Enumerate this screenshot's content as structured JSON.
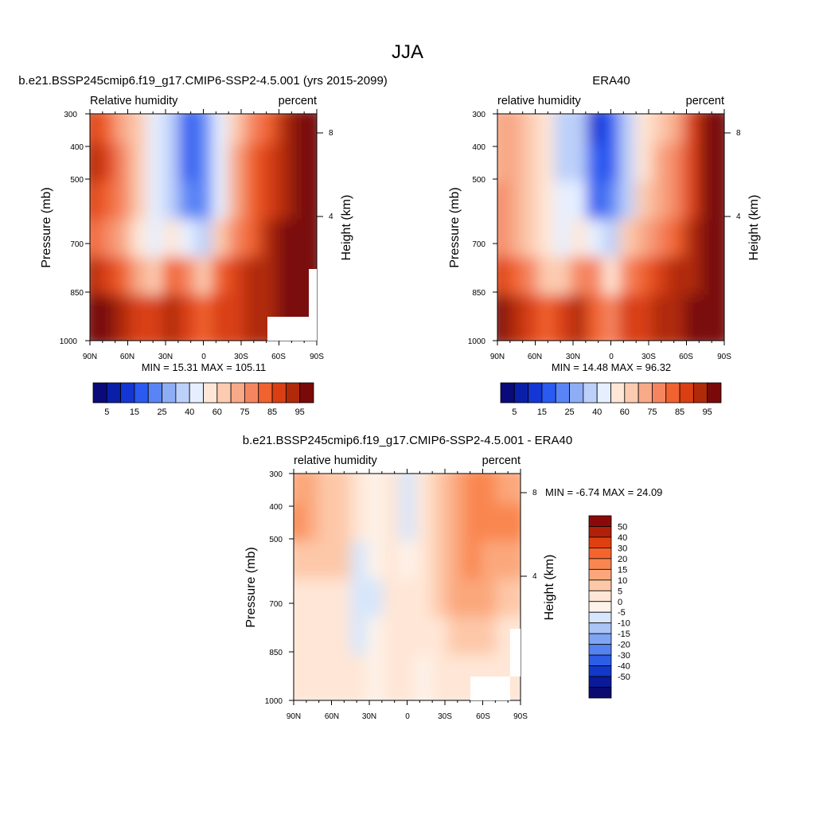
{
  "figure": {
    "title": "JJA"
  },
  "panels": [
    {
      "id": "model",
      "header": "b.e21.BSSP245cmip6.f19_g17.CMIP6-SSP2-4.5.001 (yrs 2015-2099)",
      "left_label": "Relative humidity",
      "right_label": "percent",
      "ylabel": "Pressure (mb)",
      "ylabel_right": "Height (km)",
      "stats": "MIN =  15.31  MAX = 105.11",
      "x_ticks": [
        "90N",
        "60N",
        "30N",
        "0",
        "30S",
        "60S",
        "90S"
      ],
      "y_ticks": [
        "300",
        "400",
        "500",
        "700",
        "850",
        "1000"
      ],
      "height_ticks": [
        "8",
        "4"
      ],
      "colorbar_labels": [
        "5",
        "15",
        "25",
        "40",
        "60",
        "75",
        "85",
        "95"
      ]
    },
    {
      "id": "obs",
      "header": "ERA40",
      "left_label": "relative humidity",
      "right_label": "percent",
      "ylabel": "Pressure (mb)",
      "ylabel_right": "Height (km)",
      "stats": "MIN =  14.48  MAX =  96.32",
      "x_ticks": [
        "90N",
        "60N",
        "30N",
        "0",
        "30S",
        "60S",
        "90S"
      ],
      "y_ticks": [
        "300",
        "400",
        "500",
        "700",
        "850",
        "1000"
      ],
      "height_ticks": [
        "8",
        "4"
      ],
      "colorbar_labels": [
        "5",
        "15",
        "25",
        "40",
        "60",
        "75",
        "85",
        "95"
      ]
    },
    {
      "id": "diff",
      "header": "b.e21.BSSP245cmip6.f19_g17.CMIP6-SSP2-4.5.001 - ERA40",
      "left_label": "relative humidity",
      "right_label": "percent",
      "ylabel": "Pressure (mb)",
      "ylabel_right": "Height (km)",
      "stats": "MIN =  -6.74  MAX =  24.09",
      "x_ticks": [
        "90N",
        "60N",
        "30N",
        "0",
        "30S",
        "60S",
        "90S"
      ],
      "y_ticks": [
        "300",
        "400",
        "500",
        "700",
        "850",
        "1000"
      ],
      "height_ticks": [
        "8",
        "4"
      ],
      "colorbar_labels": [
        "50",
        "40",
        "30",
        "20",
        "15",
        "10",
        "5",
        "0",
        "-5",
        "-10",
        "-15",
        "-20",
        "-30",
        "-40",
        "-50"
      ]
    }
  ],
  "colors": {
    "rh_scale": [
      "#0a0a7a",
      "#0a1fa8",
      "#1436d4",
      "#2a5af0",
      "#5a84f5",
      "#8fadf5",
      "#bcd0fa",
      "#e6efff",
      "#ffe6d6",
      "#fccbb0",
      "#f8a987",
      "#f58561",
      "#f0622f",
      "#d93f12",
      "#b02a0a",
      "#7a0a0a"
    ],
    "diff_scale": [
      "#8a0a0a",
      "#b0200a",
      "#e0400f",
      "#f5642c",
      "#f98650",
      "#fba77b",
      "#fdc8a8",
      "#ffe6d6",
      "#fdf3ea",
      "#d6e6fb",
      "#a9c4f5",
      "#7fa4f3",
      "#5582f0",
      "#2d5de5",
      "#1238c8",
      "#0a1a9a",
      "#0a0a70"
    ]
  },
  "chart_data": [
    {
      "type": "heatmap",
      "title": "b.e21.BSSP245cmip6.f19_g17.CMIP6-SSP2-4.5.001 (yrs 2015-2099)",
      "xlabel": "",
      "ylabel": "Pressure (mb)",
      "x": [
        "90N",
        "60N",
        "30N",
        "0",
        "30S",
        "60S",
        "90S"
      ],
      "y": [
        300,
        400,
        500,
        700,
        850,
        1000
      ],
      "levels": [
        5,
        10,
        15,
        20,
        25,
        30,
        40,
        50,
        60,
        65,
        70,
        75,
        80,
        85,
        90,
        95
      ],
      "min": 15.31,
      "max": 105.11,
      "values": [
        [
          80,
          75,
          65,
          60,
          40,
          30,
          15,
          20,
          40,
          60,
          70,
          75,
          85,
          95
        ],
        [
          85,
          80,
          70,
          60,
          45,
          35,
          15,
          20,
          45,
          65,
          75,
          80,
          85,
          95
        ],
        [
          80,
          78,
          70,
          60,
          45,
          35,
          20,
          22,
          45,
          65,
          75,
          82,
          88,
          95
        ],
        [
          75,
          70,
          65,
          55,
          40,
          55,
          45,
          35,
          60,
          70,
          78,
          85,
          90,
          95
        ],
        [
          85,
          80,
          75,
          65,
          60,
          75,
          70,
          60,
          75,
          80,
          85,
          88,
          90,
          95
        ],
        [
          95,
          90,
          85,
          80,
          80,
          85,
          80,
          75,
          80,
          82,
          85,
          88,
          92,
          95
        ]
      ]
    },
    {
      "type": "heatmap",
      "title": "ERA40",
      "xlabel": "",
      "ylabel": "Pressure (mb)",
      "x": [
        "90N",
        "60N",
        "30N",
        "0",
        "30S",
        "60S",
        "90S"
      ],
      "y": [
        300,
        400,
        500,
        700,
        850,
        1000
      ],
      "levels": [
        5,
        10,
        15,
        20,
        25,
        30,
        40,
        50,
        60,
        65,
        70,
        75,
        80,
        85,
        90,
        95
      ],
      "min": 14.48,
      "max": 96.32,
      "values": [
        [
          65,
          65,
          60,
          50,
          30,
          30,
          10,
          15,
          35,
          55,
          60,
          65,
          80,
          90
        ],
        [
          65,
          65,
          60,
          50,
          35,
          35,
          15,
          15,
          35,
          55,
          65,
          70,
          80,
          90
        ],
        [
          70,
          65,
          60,
          50,
          40,
          40,
          15,
          20,
          35,
          60,
          65,
          70,
          80,
          90
        ],
        [
          70,
          65,
          60,
          50,
          40,
          50,
          40,
          30,
          60,
          65,
          70,
          75,
          85,
          90
        ],
        [
          80,
          75,
          70,
          60,
          60,
          70,
          70,
          55,
          70,
          75,
          80,
          85,
          85,
          90
        ],
        [
          90,
          85,
          80,
          75,
          80,
          85,
          75,
          70,
          80,
          80,
          85,
          85,
          90,
          95
        ]
      ]
    },
    {
      "type": "heatmap",
      "title": "b.e21.BSSP245cmip6.f19_g17.CMIP6-SSP2-4.5.001 - ERA40",
      "xlabel": "",
      "ylabel": "Pressure (mb)",
      "x": [
        "90N",
        "60N",
        "30N",
        "0",
        "30S",
        "60S",
        "90S"
      ],
      "y": [
        300,
        400,
        500,
        700,
        850,
        1000
      ],
      "levels": [
        -50,
        -40,
        -30,
        -20,
        -15,
        -10,
        -5,
        0,
        5,
        10,
        15,
        20,
        30,
        40,
        50
      ],
      "min": -6.74,
      "max": 24.09,
      "values": [
        [
          15,
          15,
          10,
          10,
          5,
          0,
          5,
          -5,
          5,
          10,
          15,
          20,
          20,
          15
        ],
        [
          20,
          15,
          10,
          10,
          5,
          0,
          5,
          -5,
          5,
          10,
          15,
          20,
          20,
          20
        ],
        [
          10,
          10,
          10,
          10,
          -5,
          0,
          5,
          0,
          5,
          10,
          15,
          20,
          15,
          15
        ],
        [
          5,
          5,
          5,
          5,
          -5,
          -5,
          5,
          5,
          5,
          10,
          15,
          15,
          15,
          10
        ],
        [
          5,
          5,
          5,
          5,
          -5,
          0,
          5,
          5,
          5,
          5,
          10,
          10,
          10,
          5
        ],
        [
          5,
          5,
          5,
          5,
          5,
          0,
          5,
          5,
          0,
          5,
          5,
          5,
          5,
          5
        ]
      ]
    }
  ]
}
